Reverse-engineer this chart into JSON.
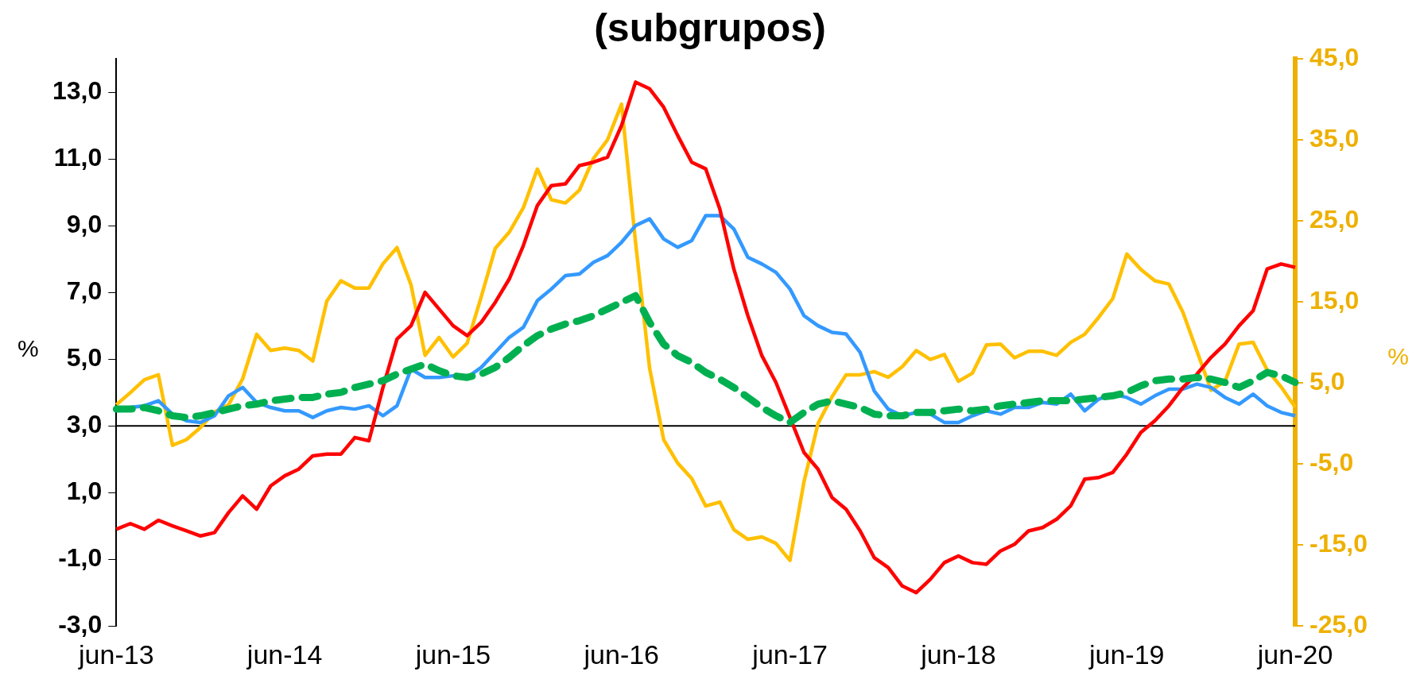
{
  "chart_data": {
    "type": "line",
    "title": "(subgrupos)",
    "ylabel": "%",
    "y2label": "%",
    "categories": [
      "jun-13",
      null,
      null,
      null,
      null,
      null,
      null,
      null,
      null,
      null,
      null,
      null,
      "jun-14",
      null,
      null,
      null,
      null,
      null,
      null,
      null,
      null,
      null,
      null,
      null,
      "jun-15",
      null,
      null,
      null,
      null,
      null,
      null,
      null,
      null,
      null,
      null,
      null,
      "jun-16",
      null,
      null,
      null,
      null,
      null,
      null,
      null,
      null,
      null,
      null,
      null,
      "jun-17",
      null,
      null,
      null,
      null,
      null,
      null,
      null,
      null,
      null,
      null,
      null,
      "jun-18",
      null,
      null,
      null,
      null,
      null,
      null,
      null,
      null,
      null,
      null,
      null,
      "jun-19",
      null,
      null,
      null,
      null,
      null,
      null,
      null,
      null,
      null,
      null,
      null,
      "jun-20"
    ],
    "series": [
      {
        "color": "#00b050",
        "line_style": "dashed",
        "values": [
          3.5,
          3.5,
          3.55,
          3.45,
          3.3,
          3.25,
          3.3,
          3.4,
          3.5,
          3.6,
          3.65,
          3.75,
          3.8,
          3.85,
          3.85,
          3.95,
          4.0,
          4.15,
          4.25,
          4.35,
          4.55,
          4.7,
          4.85,
          4.65,
          4.5,
          4.45,
          4.55,
          4.75,
          5.05,
          5.4,
          5.7,
          5.9,
          6.05,
          6.15,
          6.3,
          6.5,
          6.7,
          6.9,
          6.1,
          5.45,
          5.1,
          4.9,
          4.6,
          4.4,
          4.15,
          3.85,
          3.55,
          3.3,
          3.1,
          3.4,
          3.65,
          3.75,
          3.65,
          3.55,
          3.35,
          3.3,
          3.3,
          3.4,
          3.4,
          3.45,
          3.5,
          3.45,
          3.5,
          3.6,
          3.65,
          3.7,
          3.75,
          3.75,
          3.75,
          3.8,
          3.85,
          3.9,
          4.0,
          4.2,
          4.35,
          4.4,
          4.4,
          4.45,
          4.4,
          4.3,
          4.15,
          4.35,
          4.6,
          4.5,
          4.3
        ]
      },
      {
        "color": "#ff0000",
        "values": [
          -0.1,
          0.07,
          -0.1,
          0.17,
          0.0,
          -0.15,
          -0.3,
          -0.2,
          0.4,
          0.9,
          0.5,
          1.2,
          1.5,
          1.7,
          2.1,
          2.15,
          2.15,
          2.65,
          2.55,
          4.15,
          5.6,
          6.0,
          7.0,
          6.5,
          6.0,
          5.7,
          6.1,
          6.7,
          7.4,
          8.4,
          9.6,
          10.2,
          10.25,
          10.8,
          10.9,
          11.05,
          12.0,
          13.3,
          13.1,
          12.55,
          11.7,
          10.9,
          10.7,
          9.5,
          7.7,
          6.3,
          5.1,
          4.3,
          3.25,
          2.2,
          1.7,
          0.85,
          0.5,
          -0.15,
          -0.95,
          -1.25,
          -1.8,
          -2.0,
          -1.6,
          -1.1,
          -0.9,
          -1.1,
          -1.15,
          -0.75,
          -0.55,
          -0.15,
          -0.05,
          0.2,
          0.6,
          1.4,
          1.45,
          1.6,
          2.15,
          2.8,
          3.15,
          3.6,
          4.15,
          4.55,
          5.05,
          5.45,
          6.0,
          6.45,
          7.7,
          7.85,
          7.75
        ]
      },
      {
        "color": "#3399ff",
        "values": [
          3.5,
          3.55,
          3.6,
          3.75,
          3.35,
          3.15,
          3.1,
          3.3,
          3.9,
          4.15,
          3.7,
          3.55,
          3.45,
          3.45,
          3.25,
          3.45,
          3.55,
          3.5,
          3.6,
          3.3,
          3.6,
          4.7,
          4.45,
          4.45,
          4.5,
          4.45,
          4.75,
          5.2,
          5.65,
          5.95,
          6.75,
          7.1,
          7.5,
          7.55,
          7.9,
          8.1,
          8.5,
          9.0,
          9.2,
          8.6,
          8.35,
          8.55,
          9.3,
          9.3,
          8.9,
          8.05,
          7.85,
          7.6,
          7.1,
          6.3,
          6.0,
          5.8,
          5.75,
          5.2,
          4.05,
          3.5,
          3.3,
          3.4,
          3.35,
          3.1,
          3.1,
          3.3,
          3.45,
          3.35,
          3.55,
          3.55,
          3.7,
          3.65,
          3.95,
          3.45,
          3.8,
          3.95,
          3.85,
          3.65,
          3.9,
          4.1,
          4.1,
          4.25,
          4.15,
          3.85,
          3.65,
          3.95,
          3.6,
          3.4,
          3.3
        ]
      },
      {
        "color": "#ffc000",
        "axis": "y2",
        "values": [
          2.3,
          3.8,
          5.4,
          6.0,
          -2.7,
          -2.0,
          -0.5,
          1.4,
          2.3,
          5.5,
          11.0,
          9.0,
          9.3,
          9.0,
          7.7,
          15.1,
          17.6,
          16.7,
          16.7,
          19.7,
          21.7,
          17.1,
          8.4,
          10.6,
          8.2,
          9.9,
          15.6,
          21.6,
          23.6,
          26.6,
          31.4,
          27.6,
          27.2,
          28.8,
          32.7,
          35.0,
          39.4,
          22.3,
          6.8,
          -2.0,
          -4.9,
          -6.8,
          -10.2,
          -9.7,
          -13.1,
          -14.3,
          -14.0,
          -14.8,
          -16.9,
          -7.2,
          0.0,
          3.3,
          6.0,
          6.0,
          6.4,
          5.7,
          7.0,
          9.0,
          7.9,
          8.5,
          5.2,
          6.2,
          9.7,
          9.8,
          8.1,
          8.9,
          8.9,
          8.4,
          10.0,
          11.0,
          13.1,
          15.4,
          20.9,
          19.0,
          17.6,
          17.2,
          13.7,
          8.9,
          4.1,
          5.2,
          9.8,
          10.0,
          6.6,
          4.5,
          2.0
        ]
      }
    ],
    "ylim": [
      -3,
      14
    ],
    "yticks": [
      {
        "value": -3,
        "label": "-3,0"
      },
      {
        "value": -1,
        "label": "-1,0"
      },
      {
        "value": 1,
        "label": "1,0"
      },
      {
        "value": 3,
        "label": "3,0"
      },
      {
        "value": 5,
        "label": "5,0"
      },
      {
        "value": 7,
        "label": "7,0"
      },
      {
        "value": 9,
        "label": "9,0"
      },
      {
        "value": 11,
        "label": "11,0"
      },
      {
        "value": 13,
        "label": "13,0"
      }
    ],
    "y2lim": [
      -25,
      45
    ],
    "y2ticks": [
      {
        "value": -25,
        "label": "-25,0"
      },
      {
        "value": -15,
        "label": "-15,0"
      },
      {
        "value": -5,
        "label": "-5,0"
      },
      {
        "value": 5,
        "label": "5,0"
      },
      {
        "value": 15,
        "label": "15,0"
      },
      {
        "value": 25,
        "label": "25,0"
      },
      {
        "value": 35,
        "label": "35,0"
      },
      {
        "value": 45,
        "label": "45,0"
      }
    ],
    "ref_lines": [
      {
        "axis": "y",
        "value": 3,
        "color": "#000000"
      }
    ],
    "grid": false,
    "legend": false,
    "marker": "none"
  }
}
